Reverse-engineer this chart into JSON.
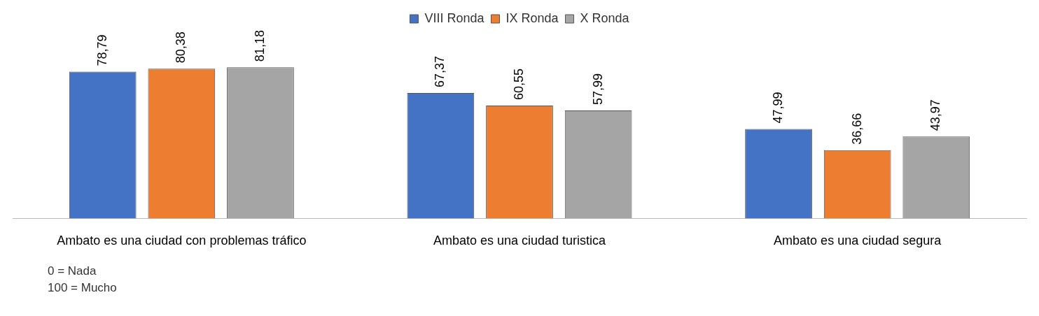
{
  "chart_data": {
    "type": "bar",
    "categories": [
      "Ambato es una ciudad con problemas tráfico",
      "Ambato es una ciudad turistica",
      "Ambato es una ciudad segura"
    ],
    "series": [
      {
        "name": "VIII Ronda",
        "color": "#4472c4",
        "values": [
          78.79,
          67.37,
          47.99
        ],
        "value_labels": [
          "78,79",
          "67,37",
          "47,99"
        ]
      },
      {
        "name": "IX Ronda",
        "color": "#ed7d31",
        "values": [
          80.38,
          60.55,
          36.66
        ],
        "value_labels": [
          "80,38",
          "60,55",
          "36,66"
        ]
      },
      {
        "name": "X Ronda",
        "color": "#a5a5a5",
        "values": [
          81.18,
          57.99,
          43.97
        ],
        "value_labels": [
          "81,18",
          "57,99",
          "43,97"
        ]
      }
    ],
    "legend": "top",
    "grid": false,
    "annotations": [
      "0 = Nada",
      "100 = Mucho"
    ]
  }
}
